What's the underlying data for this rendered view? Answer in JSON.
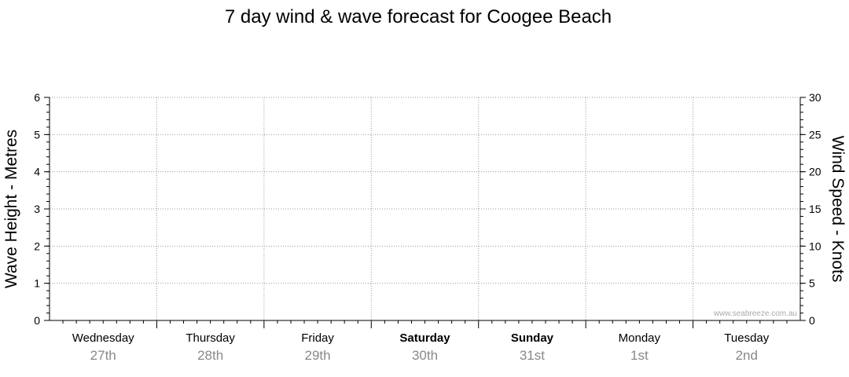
{
  "chart_data": {
    "type": "line",
    "title": "7 day wind & wave forecast for Coogee Beach",
    "left_axis": {
      "label": "Wave Height - Metres",
      "min": 0,
      "max": 6,
      "ticks": [
        "0",
        "1",
        "2",
        "3",
        "4",
        "5",
        "6"
      ]
    },
    "right_axis": {
      "label": "Wind Speed - Knots",
      "min": 0,
      "max": 30,
      "ticks": [
        "0",
        "5",
        "10",
        "15",
        "20",
        "25",
        "30"
      ]
    },
    "days": [
      {
        "day": "Wednesday",
        "date": "27th",
        "bold": false
      },
      {
        "day": "Thursday",
        "date": "28th",
        "bold": false
      },
      {
        "day": "Friday",
        "date": "29th",
        "bold": false
      },
      {
        "day": "Saturday",
        "date": "30th",
        "bold": true
      },
      {
        "day": "Sunday",
        "date": "31st",
        "bold": true
      },
      {
        "day": "Monday",
        "date": "1st",
        "bold": false
      },
      {
        "day": "Tuesday",
        "date": "2nd",
        "bold": false
      }
    ],
    "series": [],
    "grid": true,
    "watermark": "www.seabreeze.com.au"
  },
  "colors": {
    "axis": "#000000",
    "grid": "#999999",
    "date_text": "#888888",
    "watermark": "#aaaaaa"
  }
}
